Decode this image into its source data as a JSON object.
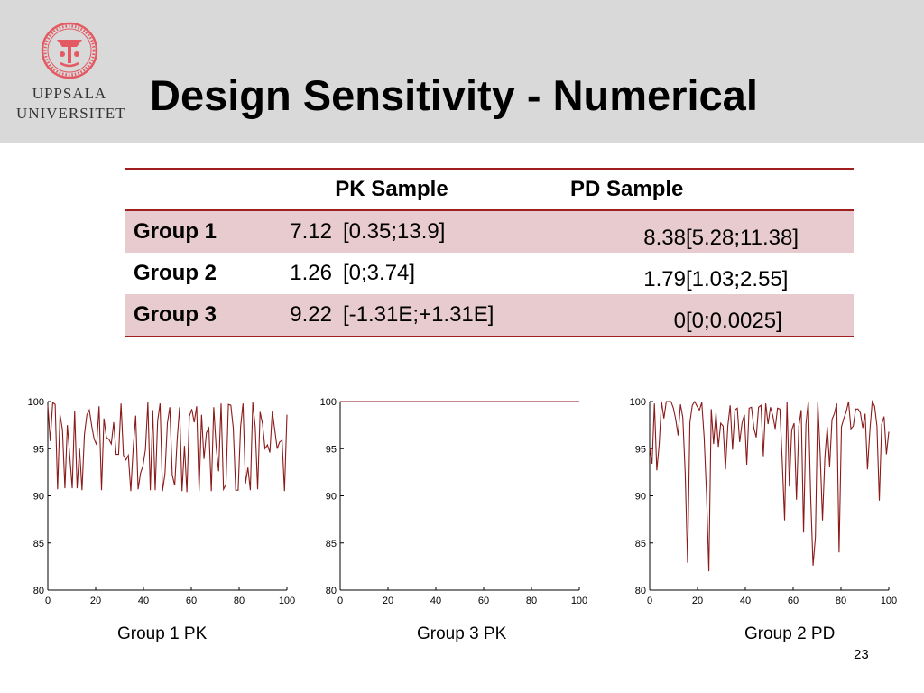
{
  "header": {
    "title": "Design Sensitivity - Numerical",
    "logo_line1": "UPPSALA",
    "logo_line2": "UNIVERSITET"
  },
  "table": {
    "col_pk": "PK Sample",
    "col_pd": "PD Sample",
    "rows": [
      {
        "group": "Group 1",
        "pk_value": "7.12",
        "pk_ci": "[0.35;13.9]",
        "pd_value": "8.38",
        "pd_ci": "[5.28;11.38]"
      },
      {
        "group": "Group 2",
        "pk_value": "1.26",
        "pk_ci": "[0;3.74]",
        "pd_value": "1.79",
        "pd_ci": "[1.03;2.55]"
      },
      {
        "group": "Group 3",
        "pk_value": "9.22",
        "pk_ci": "[-1.31E;+1.31E]",
        "pd_value": "0",
        "pd_ci": "[0;0.0025]"
      }
    ]
  },
  "colors": {
    "series": "#8b1a1a",
    "table_rule": "#a02020",
    "row_shade": "#e8cbce",
    "header_bg": "#d9d9da"
  },
  "chart_data": [
    {
      "type": "line",
      "caption": "Group 1 PK",
      "xlim": [
        0,
        100
      ],
      "ylim": [
        80,
        100
      ],
      "xticks": [
        0,
        20,
        40,
        60,
        80,
        100
      ],
      "yticks": [
        80,
        85,
        90,
        95,
        100
      ],
      "grid": false,
      "series": [
        {
          "values": [
            99.6,
            95.8,
            99.9,
            99.7,
            90.7,
            98.6,
            97.0,
            90.8,
            97.5,
            94.2,
            90.8,
            99.0,
            90.8,
            95.0,
            90.6,
            96.5,
            98.6,
            99.1,
            97.4,
            96.0,
            95.4,
            99.5,
            90.6,
            98.2,
            96.2,
            96.0,
            95.5,
            97.8,
            94.4,
            94.4,
            99.8,
            94.3,
            93.8,
            94.3,
            90.5,
            95.1,
            98.5,
            90.7,
            92.4,
            93.2,
            94.9,
            99.9,
            90.6,
            99.1,
            90.6,
            97.9,
            99.8,
            90.5,
            92.3,
            97.7,
            99.4,
            92.2,
            91.1,
            95.9,
            99.4,
            90.5,
            95.3,
            90.4,
            98.4,
            99.2,
            97.8,
            99.5,
            90.5,
            98.6,
            93.9,
            96.7,
            97.2,
            90.5,
            99.4,
            95.1,
            92.6,
            99.8,
            90.7,
            91.2,
            99.7,
            99.6,
            97.2,
            90.6,
            90.6,
            97.3,
            99.8,
            91.3,
            93.0,
            90.6,
            99.9,
            97.3,
            90.7,
            98.9,
            97.6,
            95.0,
            95.4,
            94.6,
            99.0,
            97.0,
            95.0,
            95.7,
            95.9,
            90.5,
            98.6
          ]
        }
      ]
    },
    {
      "type": "line",
      "caption": "Group 3 PK",
      "xlim": [
        0,
        100
      ],
      "ylim": [
        80,
        100
      ],
      "xticks": [
        0,
        20,
        40,
        60,
        80,
        100
      ],
      "yticks": [
        80,
        85,
        90,
        95,
        100
      ],
      "grid": false,
      "series": [
        {
          "values": [
            100,
            100,
            100,
            100,
            100,
            100,
            100,
            100,
            100,
            100,
            100,
            100,
            100,
            100,
            100,
            100,
            100,
            100,
            100,
            100,
            100,
            100,
            100,
            100,
            100,
            100,
            100,
            100,
            100,
            100,
            100,
            100,
            100,
            100,
            100,
            100,
            100,
            100,
            100,
            100,
            100,
            100,
            100,
            100,
            100,
            100,
            100,
            100,
            100,
            100,
            100,
            100,
            100,
            100,
            100,
            100,
            100,
            100,
            100,
            100,
            100,
            100,
            100,
            100,
            100,
            100,
            100,
            100,
            100,
            100,
            100,
            100,
            100,
            100,
            100,
            100,
            100,
            100,
            100,
            100,
            100,
            100,
            100,
            100,
            100,
            100,
            100,
            100,
            100,
            100,
            100,
            100,
            100,
            100,
            100,
            100,
            100,
            100,
            100,
            100
          ]
        }
      ]
    },
    {
      "type": "line",
      "caption": "Group 2 PD",
      "xlim": [
        0,
        100
      ],
      "ylim": [
        80,
        100
      ],
      "xticks": [
        0,
        20,
        40,
        60,
        80,
        100
      ],
      "yticks": [
        80,
        85,
        90,
        95,
        100
      ],
      "grid": false,
      "series": [
        {
          "values": [
            95.1,
            93.4,
            99.8,
            92.7,
            95.4,
            100,
            98.2,
            100,
            100,
            100,
            99.3,
            98.1,
            96.4,
            99.7,
            98.3,
            92.4,
            82.9,
            97.8,
            99.6,
            100,
            99.5,
            99.1,
            99.9,
            96.2,
            90.2,
            82.0,
            99.2,
            95.5,
            98.8,
            95.2,
            97.7,
            97.4,
            92.8,
            97.4,
            99.6,
            94.9,
            99.1,
            99.3,
            95.7,
            97.7,
            98.6,
            93.3,
            99.3,
            99.4,
            97.2,
            96.2,
            99.4,
            99.6,
            94.2,
            99.8,
            97.6,
            99.4,
            98.5,
            97.1,
            99.3,
            99.2,
            93.6,
            87.4,
            100,
            91.0,
            97.0,
            97.7,
            89.6,
            97.4,
            99.1,
            86.1,
            97.6,
            100,
            89.9,
            82.6,
            85.6,
            100,
            94.5,
            87.4,
            94.1,
            97.3,
            93.1,
            98.1,
            98.7,
            99.8,
            84.0,
            97.3,
            98.2,
            98.9,
            100,
            97.1,
            97.4,
            99.2,
            99.2,
            98.8,
            97.2,
            98.7,
            92.8,
            96.9,
            100,
            99.5,
            97.4,
            89.5,
            97.6,
            98.4,
            94.4,
            96.8
          ]
        }
      ]
    }
  ],
  "page_number": "23"
}
